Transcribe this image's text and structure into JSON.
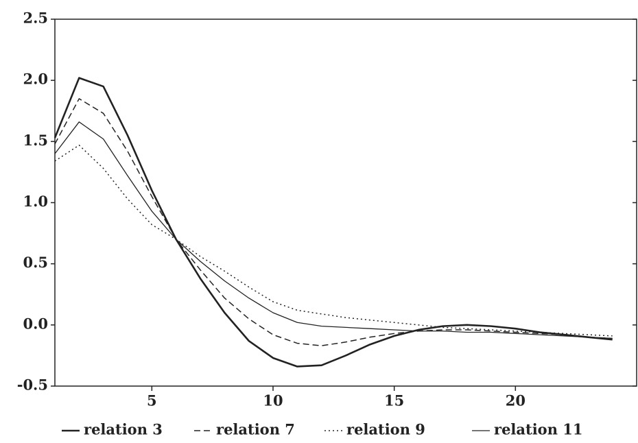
{
  "chart_data": {
    "type": "line",
    "x": [
      1,
      2,
      3,
      4,
      5,
      6,
      7,
      8,
      9,
      10,
      11,
      12,
      13,
      14,
      15,
      16,
      17,
      18,
      19,
      20,
      21,
      22,
      23,
      24
    ],
    "series": [
      {
        "name": "relation 3",
        "color": "#222222",
        "style": "solid",
        "linewidth": 2.6,
        "values": [
          1.53,
          2.02,
          1.95,
          1.55,
          1.1,
          0.7,
          0.38,
          0.1,
          -0.13,
          -0.27,
          -0.34,
          -0.33,
          -0.25,
          -0.16,
          -0.09,
          -0.04,
          -0.01,
          0.0,
          -0.01,
          -0.03,
          -0.06,
          -0.08,
          -0.1,
          -0.12
        ]
      },
      {
        "name": "relation 7",
        "color": "#222222",
        "style": "dashed",
        "linewidth": 1.5,
        "values": [
          1.48,
          1.85,
          1.73,
          1.42,
          1.05,
          0.7,
          0.45,
          0.22,
          0.05,
          -0.08,
          -0.15,
          -0.17,
          -0.14,
          -0.1,
          -0.07,
          -0.05,
          -0.04,
          -0.04,
          -0.05,
          -0.06,
          -0.07,
          -0.08,
          -0.1,
          -0.11
        ]
      },
      {
        "name": "relation 9",
        "color": "#222222",
        "style": "dotted",
        "linewidth": 1.5,
        "values": [
          1.34,
          1.47,
          1.28,
          1.03,
          0.82,
          0.7,
          0.56,
          0.44,
          0.31,
          0.19,
          0.12,
          0.09,
          0.06,
          0.04,
          0.02,
          0.0,
          -0.02,
          -0.03,
          -0.04,
          -0.05,
          -0.06,
          -0.07,
          -0.08,
          -0.09
        ]
      },
      {
        "name": "relation 11",
        "color": "#222222",
        "style": "solid",
        "linewidth": 1.3,
        "values": [
          1.4,
          1.66,
          1.52,
          1.22,
          0.93,
          0.7,
          0.52,
          0.36,
          0.22,
          0.1,
          0.02,
          -0.01,
          -0.02,
          -0.03,
          -0.04,
          -0.05,
          -0.05,
          -0.06,
          -0.06,
          -0.07,
          -0.08,
          -0.09,
          -0.1,
          -0.11
        ]
      }
    ],
    "xlim": [
      1,
      25
    ],
    "xticks": [
      5,
      10,
      15,
      20
    ],
    "ylim": [
      -0.5,
      2.5
    ],
    "yticks": [
      -0.5,
      {
        "value": 0,
        "label": "0.0"
      },
      0.5,
      {
        "value": 1,
        "label": "1.0"
      },
      1.5,
      {
        "value": 2,
        "label": "2.0"
      },
      2.5
    ],
    "legend": "bottom",
    "grid": false
  }
}
